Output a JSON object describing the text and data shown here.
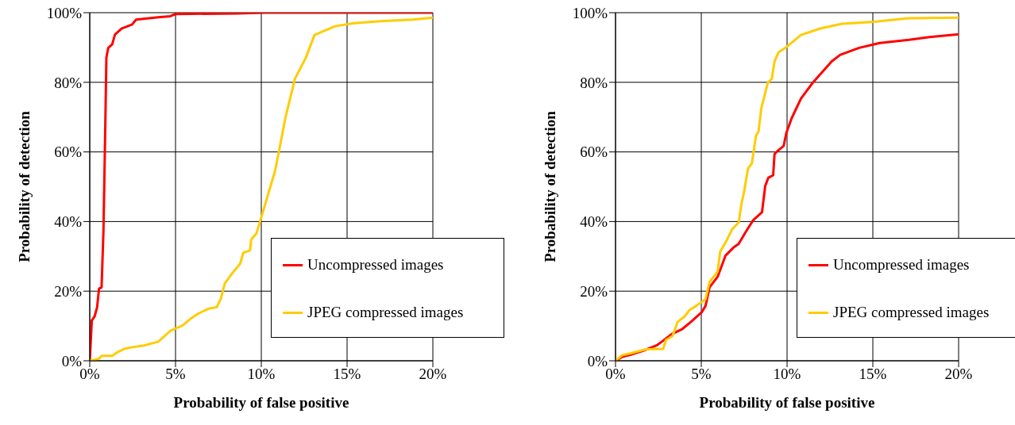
{
  "chart_data": [
    {
      "type": "line",
      "xlabel": "Probability of false positive",
      "ylabel": "Probability of detection",
      "xlim": [
        0,
        20
      ],
      "ylim": [
        0,
        100
      ],
      "xticks": [
        {
          "value": 0,
          "label": "0%"
        },
        {
          "value": 5,
          "label": "5%"
        },
        {
          "value": 10,
          "label": "10%"
        },
        {
          "value": 15,
          "label": "15%"
        },
        {
          "value": 20,
          "label": "20%"
        }
      ],
      "yticks": [
        {
          "value": 0,
          "label": "0%"
        },
        {
          "value": 20,
          "label": "20%"
        },
        {
          "value": 40,
          "label": "40%"
        },
        {
          "value": 60,
          "label": "60%"
        },
        {
          "value": 80,
          "label": "80%"
        },
        {
          "value": 100,
          "label": "100%"
        }
      ],
      "grid": true,
      "legend": "bottom right",
      "series": [
        {
          "name": "Uncompressed images",
          "color": "#ff0000",
          "x": [
            0,
            0.12,
            0.28,
            0.43,
            0.54,
            0.69,
            0.8,
            0.9,
            0.97,
            1.08,
            1.31,
            1.47,
            1.85,
            2.47,
            2.7,
            4.0,
            4.7,
            5.0,
            8.6,
            10.2,
            20
          ],
          "values": [
            0,
            11.6,
            12.7,
            15.4,
            20.7,
            21.1,
            37.4,
            65.5,
            87.1,
            89.9,
            90.9,
            93.7,
            95.4,
            96.6,
            98.0,
            98.7,
            99.0,
            99.6,
            99.8,
            100,
            100
          ]
        },
        {
          "name": "JPEG compressed images",
          "color": "#ffcc00",
          "x": [
            0,
            0.54,
            0.69,
            1.31,
            1.62,
            2.0,
            2.47,
            3.16,
            4.0,
            4.7,
            5.4,
            5.86,
            6.3,
            6.94,
            7.4,
            7.64,
            7.87,
            8.33,
            8.77,
            8.95,
            9.34,
            9.41,
            9.72,
            10.0,
            10.8,
            11.0,
            11.4,
            11.96,
            12.6,
            13.1,
            14.3,
            15.4,
            17.1,
            18.8,
            20
          ],
          "values": [
            0,
            0.6,
            1.4,
            1.4,
            2.5,
            3.4,
            3.9,
            4.4,
            5.5,
            8.6,
            10.1,
            12.0,
            13.5,
            15.0,
            15.4,
            17.8,
            22.2,
            25.3,
            27.9,
            31.0,
            31.7,
            34.8,
            36.6,
            41.2,
            54.5,
            59.4,
            69.7,
            81.0,
            87.1,
            93.6,
            96.1,
            97.0,
            97.6,
            98.0,
            98.6
          ]
        }
      ]
    },
    {
      "type": "line",
      "xlabel": "Probability of false positive",
      "ylabel": "Probability of detection",
      "xlim": [
        0,
        20
      ],
      "ylim": [
        0,
        100
      ],
      "xticks": [
        {
          "value": 0,
          "label": "0%"
        },
        {
          "value": 5,
          "label": "5%"
        },
        {
          "value": 10,
          "label": "10%"
        },
        {
          "value": 15,
          "label": "15%"
        },
        {
          "value": 20,
          "label": "20%"
        }
      ],
      "yticks": [
        {
          "value": 0,
          "label": "0%"
        },
        {
          "value": 20,
          "label": "20%"
        },
        {
          "value": 40,
          "label": "40%"
        },
        {
          "value": 60,
          "label": "60%"
        },
        {
          "value": 80,
          "label": "80%"
        },
        {
          "value": 100,
          "label": "100%"
        }
      ],
      "grid": true,
      "legend": "bottom right",
      "series": [
        {
          "name": "Uncompressed images",
          "color": "#ff0000",
          "x": [
            0,
            0.39,
            0.85,
            1.62,
            2.39,
            2.7,
            3.32,
            3.86,
            4.4,
            5.02,
            5.25,
            5.48,
            5.95,
            6.41,
            6.87,
            7.18,
            7.64,
            8.03,
            8.54,
            8.73,
            8.91,
            9.19,
            9.27,
            9.5,
            9.8,
            9.96,
            10.27,
            10.81,
            11.5,
            12.6,
            13.1,
            14.2,
            15.4,
            17.1,
            18.3,
            20
          ],
          "values": [
            0,
            1.1,
            1.7,
            2.9,
            4.4,
            5.5,
            7.8,
            9.0,
            11.2,
            13.9,
            15.8,
            21.1,
            24.1,
            30.2,
            32.5,
            33.6,
            37.4,
            40.4,
            42.7,
            50.3,
            52.6,
            53.3,
            59.4,
            60.5,
            61.7,
            65.5,
            69.7,
            75.3,
            79.9,
            86.0,
            87.9,
            89.9,
            91.3,
            92.2,
            93.0,
            93.8
          ]
        },
        {
          "name": "JPEG compressed images",
          "color": "#ffcc00",
          "x": [
            0,
            0.39,
            0.85,
            1.78,
            2.78,
            2.93,
            3.32,
            3.63,
            4.02,
            4.32,
            4.71,
            5.25,
            5.48,
            5.95,
            6.1,
            6.49,
            6.8,
            7.18,
            7.34,
            7.49,
            7.72,
            7.95,
            8.19,
            8.34,
            8.49,
            8.88,
            9.11,
            9.27,
            9.5,
            9.96,
            10.81,
            11.97,
            13.2,
            15.06,
            17.07,
            20
          ],
          "values": [
            0,
            1.6,
            2.1,
            3.3,
            3.4,
            5.9,
            7.1,
            11.2,
            12.7,
            14.6,
            15.8,
            17.7,
            22.6,
            25.6,
            31.3,
            34.7,
            37.8,
            39.7,
            45.0,
            48.4,
            55.2,
            56.7,
            64.7,
            65.9,
            72.3,
            79.9,
            81.0,
            86.0,
            88.6,
            90.1,
            93.6,
            95.5,
            96.8,
            97.4,
            98.4,
            98.6
          ]
        }
      ]
    }
  ]
}
